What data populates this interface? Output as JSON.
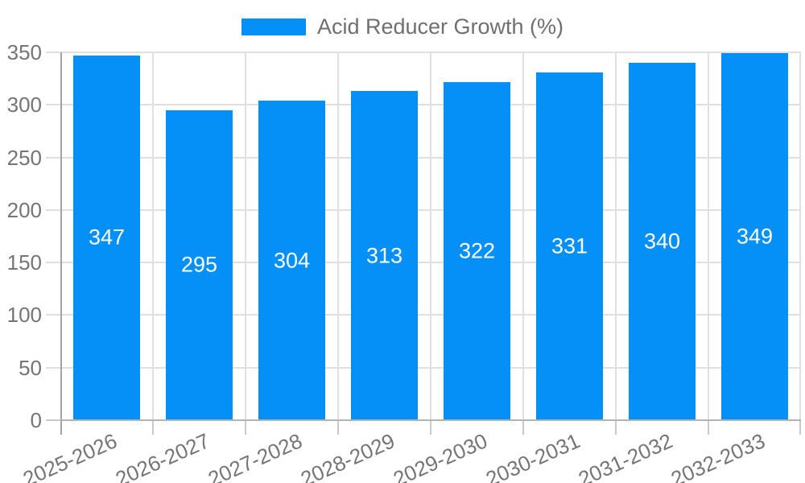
{
  "legend": {
    "label": "Acid Reducer Growth (%)"
  },
  "chart_data": {
    "type": "bar",
    "title": "Acid Reducer Growth (%)",
    "series_name": "Acid Reducer Growth (%)",
    "categories": [
      "2025-2026",
      "2026-2027",
      "2027-2028",
      "2028-2029",
      "2029-2030",
      "2030-2031",
      "2031-2032",
      "2032-2033"
    ],
    "values": [
      347,
      295,
      304,
      313,
      322,
      331,
      340,
      349
    ],
    "xlabel": "",
    "ylabel": "",
    "ylim": [
      0,
      350
    ],
    "yticks": [
      0,
      50,
      100,
      150,
      200,
      250,
      300,
      350
    ],
    "grid": true,
    "legend_position": "top",
    "bar_color": "#0590f7",
    "bar_label_color": "#ffffff",
    "axis_text_color": "#757575",
    "gridline_color": "#e0e0e0"
  }
}
